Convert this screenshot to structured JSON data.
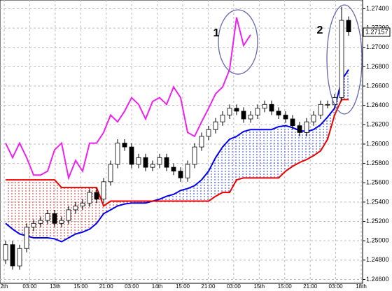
{
  "chart_data": {
    "type": "candlestick",
    "current_price": {
      "value": 1.27157,
      "label": "1.27157"
    },
    "annotations": [
      "1",
      "2"
    ],
    "x_labels": [
      "2th",
      "03:00",
      "13th",
      "15:00",
      "21:00",
      "03:00",
      "14th",
      "15:00",
      "21:00",
      "03:00",
      "15th",
      "15:00",
      "21:00",
      "03:00",
      "18th"
    ],
    "ylim": [
      1.2456,
      1.2749
    ],
    "yticks": [
      {
        "value": 1.246,
        "label": "1.24600"
      },
      {
        "value": 1.248,
        "label": "1.24800"
      },
      {
        "value": 1.25,
        "label": "1.25000"
      },
      {
        "value": 1.252,
        "label": "1.25200"
      },
      {
        "value": 1.254,
        "label": "1.25400"
      },
      {
        "value": 1.256,
        "label": "1.25600"
      },
      {
        "value": 1.258,
        "label": "1.25800"
      },
      {
        "value": 1.26,
        "label": "1.26000"
      },
      {
        "value": 1.262,
        "label": "1.26200"
      },
      {
        "value": 1.264,
        "label": "1.26400"
      },
      {
        "value": 1.266,
        "label": "1.26600"
      },
      {
        "value": 1.268,
        "label": "1.26800"
      },
      {
        "value": 1.27,
        "label": "1.27000"
      },
      {
        "value": 1.272,
        "label": "1.27200"
      },
      {
        "value": 1.274,
        "label": "1.27400"
      }
    ],
    "grid": true,
    "candles": {
      "open": [
        1.248,
        1.2496,
        1.2474,
        1.2492,
        1.2514,
        1.2518,
        1.2521,
        1.2528,
        1.2518,
        1.2521,
        1.2532,
        1.2536,
        1.2539,
        1.255,
        1.2543,
        1.2561,
        1.2579,
        1.2601,
        1.2597,
        1.2579,
        1.2586,
        1.2576,
        1.2579,
        1.2586,
        1.2576,
        1.2572,
        1.2565,
        1.2579,
        1.2597,
        1.2608,
        1.2615,
        1.2623,
        1.263,
        1.2637,
        1.2634,
        1.2626,
        1.263,
        1.2637,
        1.2641,
        1.2634,
        1.263,
        1.2626,
        1.2619,
        1.2612,
        1.2623,
        1.263,
        1.2641,
        1.2641,
        1.2648,
        1.2728
      ],
      "high": [
        1.25,
        1.25,
        1.2496,
        1.2518,
        1.2522,
        1.2525,
        1.2532,
        1.2532,
        1.2525,
        1.2536,
        1.254,
        1.2543,
        1.2554,
        1.2554,
        1.2565,
        1.2583,
        1.2605,
        1.2605,
        1.2601,
        1.259,
        1.259,
        1.2583,
        1.259,
        1.259,
        1.258,
        1.2576,
        1.2583,
        1.2601,
        1.2612,
        1.2619,
        1.2627,
        1.2634,
        1.2641,
        1.2641,
        1.2638,
        1.2634,
        1.2641,
        1.2645,
        1.2645,
        1.2638,
        1.2634,
        1.263,
        1.2623,
        1.2627,
        1.2634,
        1.2645,
        1.2645,
        1.2652,
        1.2742,
        1.2732
      ],
      "low": [
        1.2476,
        1.247,
        1.247,
        1.2488,
        1.251,
        1.2514,
        1.2517,
        1.2514,
        1.2514,
        1.2517,
        1.2528,
        1.2532,
        1.2535,
        1.2539,
        1.2539,
        1.2557,
        1.2575,
        1.2593,
        1.2575,
        1.2575,
        1.2572,
        1.2572,
        1.2575,
        1.2572,
        1.2568,
        1.2561,
        1.2561,
        1.2575,
        1.2593,
        1.2604,
        1.2611,
        1.2619,
        1.2626,
        1.263,
        1.2622,
        1.2622,
        1.2626,
        1.2633,
        1.263,
        1.2626,
        1.2622,
        1.2615,
        1.2608,
        1.2608,
        1.2619,
        1.2626,
        1.2637,
        1.2637,
        1.2644,
        1.2712
      ],
      "close": [
        1.2496,
        1.2474,
        1.2492,
        1.2514,
        1.2518,
        1.2521,
        1.2528,
        1.2518,
        1.2521,
        1.2532,
        1.2536,
        1.2539,
        1.255,
        1.2543,
        1.2561,
        1.2579,
        1.2601,
        1.2597,
        1.2579,
        1.2586,
        1.2576,
        1.2579,
        1.2586,
        1.2576,
        1.2572,
        1.2565,
        1.2579,
        1.2597,
        1.2608,
        1.2615,
        1.2623,
        1.263,
        1.2637,
        1.2634,
        1.2626,
        1.263,
        1.2637,
        1.2641,
        1.2634,
        1.263,
        1.2626,
        1.2619,
        1.2612,
        1.2623,
        1.263,
        1.2641,
        1.2641,
        1.2648,
        1.2728,
        1.2716
      ],
      "up_color": "#ffffff",
      "down_color": "#000000"
    },
    "series": [
      {
        "color": "#0000ee",
        "values": [
          1.2518,
          1.2512,
          1.2507,
          1.2505,
          1.2503,
          1.2503,
          1.2503,
          1.2502,
          1.2499,
          1.2503,
          1.2507,
          1.2509,
          1.2512,
          1.2518,
          1.2528,
          1.2532,
          1.2536,
          1.2538,
          1.2539,
          1.2539,
          1.2539,
          1.2541,
          1.2543,
          1.2546,
          1.2548,
          1.2552,
          1.2554,
          1.2557,
          1.2563,
          1.2572,
          1.2586,
          1.2597,
          1.2605,
          1.2608,
          1.2613,
          1.2615,
          1.2615,
          1.2615,
          1.2615,
          1.2618,
          1.2619,
          1.2617,
          1.2614,
          1.2613,
          1.2615,
          1.262,
          1.2628,
          1.2637,
          1.2666,
          1.2677
        ]
      },
      {
        "color": "#ee0000",
        "values": [
          1.2563,
          1.2563,
          1.2563,
          1.2563,
          1.2563,
          1.2563,
          1.2563,
          1.2563,
          1.2555,
          1.2555,
          1.2555,
          1.2555,
          1.2555,
          1.2555,
          1.2536,
          1.2541,
          1.2541,
          1.2541,
          1.2541,
          1.2541,
          1.2541,
          1.2541,
          1.2541,
          1.2541,
          1.2541,
          1.2541,
          1.2541,
          1.2541,
          1.2541,
          1.2541,
          1.2546,
          1.255,
          1.255,
          1.2563,
          1.2565,
          1.2565,
          1.2565,
          1.2565,
          1.2565,
          1.2565,
          1.2572,
          1.2577,
          1.2581,
          1.2584,
          1.2588,
          1.2593,
          1.2605,
          1.263,
          1.2646,
          1.2646
        ]
      },
      {
        "color": "#ee22ee",
        "values": [
          1.2601,
          1.2586,
          1.2601,
          1.2586,
          1.2568,
          1.2568,
          1.2572,
          1.2594,
          1.2601,
          1.2565,
          1.2583,
          1.2572,
          1.2601,
          1.2601,
          1.2612,
          1.263,
          1.2623,
          1.2634,
          1.2648,
          1.2641,
          1.2626,
          1.2644,
          1.2648,
          1.2641,
          1.2659,
          1.2648,
          1.2612,
          1.2608,
          1.2623,
          1.2637,
          1.2652,
          1.2659,
          1.2677,
          1.2731,
          1.2702,
          1.2713,
          null,
          null,
          null,
          null,
          null,
          null,
          null,
          null,
          null,
          null,
          null,
          null,
          null,
          null
        ]
      }
    ],
    "cloud": {
      "between": [
        0,
        1
      ],
      "colors": [
        "#3344cc",
        "#cc3333"
      ]
    }
  }
}
